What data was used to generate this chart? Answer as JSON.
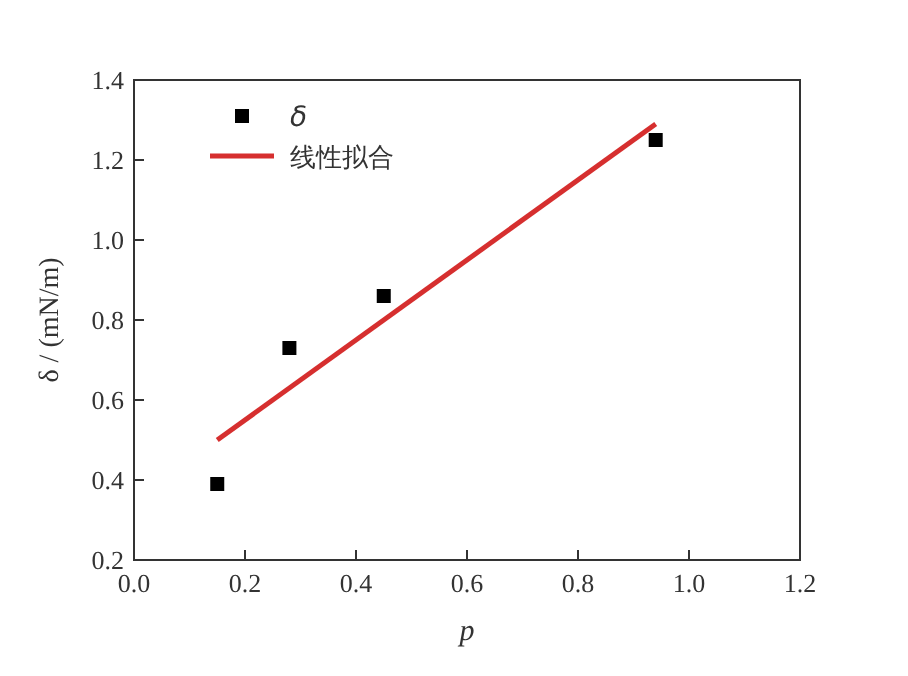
{
  "chart_data": {
    "type": "scatter",
    "xlabel": "p",
    "ylabel": "δ / (mN/m)",
    "xlim": [
      0,
      1.2
    ],
    "ylim": [
      0.2,
      1.4
    ],
    "xticks": [
      {
        "value": 0,
        "label": "0.0"
      },
      {
        "value": 0.2,
        "label": "0.2"
      },
      {
        "value": 0.4,
        "label": "0.4"
      },
      {
        "value": 0.6,
        "label": "0.6"
      },
      {
        "value": 0.8,
        "label": "0.8"
      },
      {
        "value": 1,
        "label": "1.0"
      },
      {
        "value": 1.2,
        "label": "1.2"
      }
    ],
    "yticks": [
      {
        "value": 0.2,
        "label": "0.2"
      },
      {
        "value": 0.4,
        "label": "0.4"
      },
      {
        "value": 0.6,
        "label": "0.6"
      },
      {
        "value": 0.8,
        "label": "0.8"
      },
      {
        "value": 1,
        "label": "1.0"
      },
      {
        "value": 1.2,
        "label": "1.2"
      },
      {
        "value": 1.4,
        "label": "1.4"
      }
    ],
    "legend": "top left",
    "grid": false,
    "series": [
      {
        "name": "δ",
        "marker": "square",
        "color": "#000000",
        "x": [
          0.15,
          0.28,
          0.45,
          0.94
        ],
        "values": [
          0.39,
          0.73,
          0.86,
          1.25
        ]
      },
      {
        "name": "线性拟合",
        "type": "line",
        "marker": "none",
        "line_style": "solid",
        "color": "#d62f2f",
        "x": [
          0.15,
          0.94
        ],
        "values": [
          0.5,
          1.29
        ]
      }
    ]
  }
}
